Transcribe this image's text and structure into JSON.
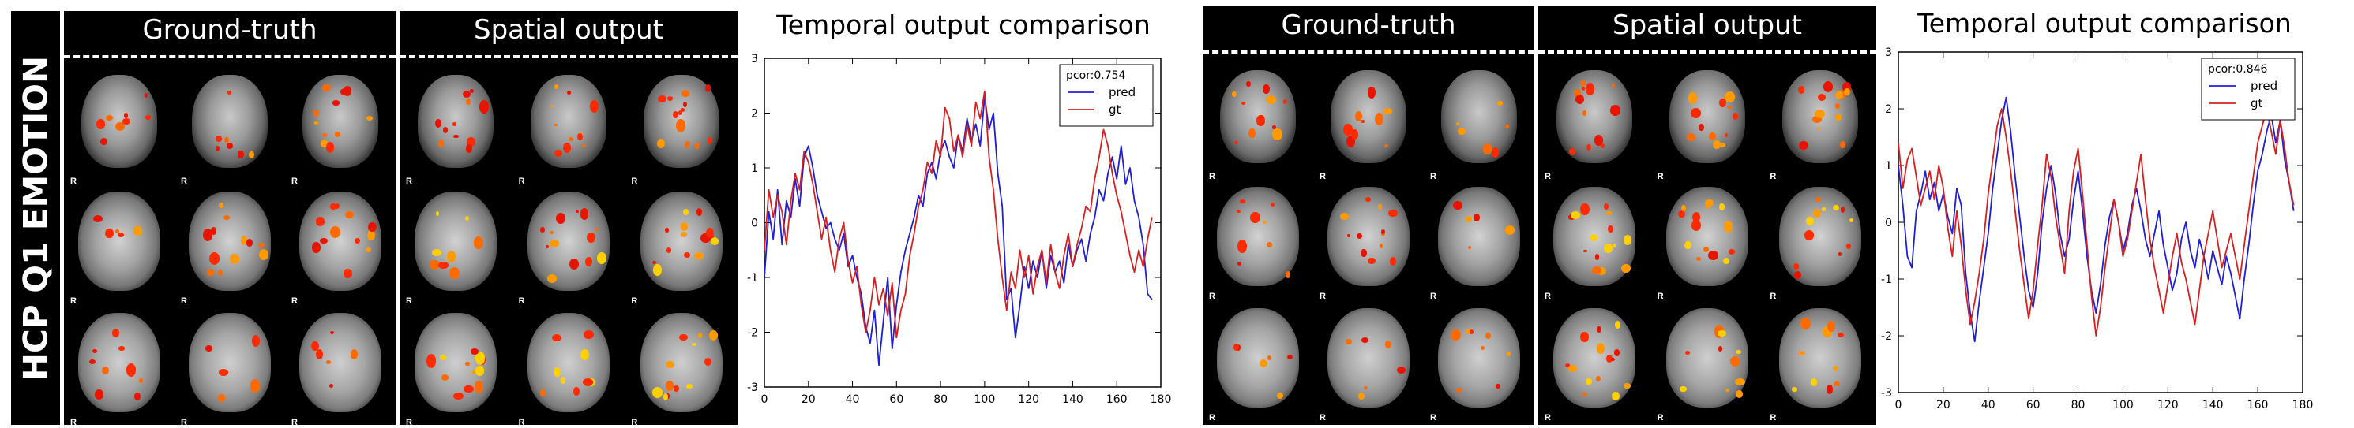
{
  "row_label": "HCP Q1 EMOTION",
  "panels": {
    "gt_title": "Ground-truth",
    "sp_title": "Spatial output"
  },
  "slice_marker": "R",
  "chart_data": [
    {
      "type": "line",
      "title": "Temporal output comparison",
      "xlabel": "",
      "ylabel": "",
      "xlim": [
        0,
        180
      ],
      "ylim": [
        -3,
        3
      ],
      "xticks": [
        0,
        20,
        40,
        60,
        80,
        100,
        120,
        140,
        160,
        180
      ],
      "yticks": [
        -3,
        -2,
        -1,
        0,
        1,
        2,
        3
      ],
      "grid": false,
      "legend": {
        "placement": "top-right",
        "title": "pcor:0.754"
      },
      "series": [
        {
          "name": "pred",
          "color": "#1f1fd6",
          "x": [
            0,
            2,
            4,
            6,
            8,
            10,
            12,
            14,
            16,
            18,
            20,
            22,
            24,
            26,
            28,
            30,
            32,
            34,
            36,
            38,
            40,
            42,
            44,
            46,
            48,
            50,
            52,
            54,
            56,
            58,
            60,
            62,
            64,
            66,
            68,
            70,
            72,
            74,
            76,
            78,
            80,
            82,
            84,
            86,
            88,
            90,
            92,
            94,
            96,
            98,
            100,
            102,
            104,
            106,
            108,
            110,
            112,
            114,
            116,
            118,
            120,
            122,
            124,
            126,
            128,
            130,
            132,
            134,
            136,
            138,
            140,
            142,
            144,
            146,
            148,
            150,
            152,
            154,
            156,
            158,
            160,
            162,
            164,
            166,
            168,
            170,
            172,
            174,
            176
          ],
          "y": [
            -1.0,
            0.2,
            -0.3,
            0.6,
            -0.4,
            0.4,
            0.1,
            0.8,
            0.3,
            1.2,
            1.4,
            1.0,
            0.5,
            0.2,
            -0.1,
            0.0,
            -0.3,
            -0.5,
            -0.2,
            -0.8,
            -0.6,
            -1.0,
            -1.3,
            -1.9,
            -2.2,
            -1.6,
            -2.6,
            -1.8,
            -1.0,
            -2.3,
            -1.5,
            -0.9,
            -0.5,
            -0.2,
            0.1,
            0.5,
            0.3,
            0.9,
            1.1,
            0.8,
            1.3,
            1.5,
            1.2,
            1.0,
            1.6,
            1.3,
            1.9,
            1.5,
            1.8,
            1.4,
            2.3,
            1.7,
            2.0,
            0.9,
            0.3,
            -1.4,
            -1.2,
            -2.1,
            -1.5,
            -0.8,
            -1.2,
            -0.7,
            -1.0,
            -0.5,
            -1.2,
            -0.6,
            -0.9,
            -0.7,
            -1.1,
            -0.4,
            -0.8,
            -0.5,
            -0.3,
            -0.7,
            -0.2,
            0.1,
            0.6,
            0.4,
            0.9,
            1.2,
            0.8,
            1.4,
            0.7,
            1.0,
            0.4,
            0.1,
            -0.4,
            -1.3,
            -1.4
          ]
        },
        {
          "name": "gt",
          "color": "#d62020",
          "x": [
            0,
            2,
            4,
            6,
            8,
            10,
            12,
            14,
            16,
            18,
            20,
            22,
            24,
            26,
            28,
            30,
            32,
            34,
            36,
            38,
            40,
            42,
            44,
            46,
            48,
            50,
            52,
            54,
            56,
            58,
            60,
            62,
            64,
            66,
            68,
            70,
            72,
            74,
            76,
            78,
            80,
            82,
            84,
            86,
            88,
            90,
            92,
            94,
            96,
            98,
            100,
            102,
            104,
            106,
            108,
            110,
            112,
            114,
            116,
            118,
            120,
            122,
            124,
            126,
            128,
            130,
            132,
            134,
            136,
            138,
            140,
            142,
            144,
            146,
            148,
            150,
            152,
            154,
            156,
            158,
            160,
            162,
            164,
            166,
            168,
            170,
            172,
            174,
            176
          ],
          "y": [
            -0.5,
            0.6,
            0.1,
            0.5,
            0.2,
            -0.4,
            0.4,
            0.9,
            0.6,
            1.3,
            1.1,
            0.7,
            0.2,
            -0.3,
            0.1,
            -0.5,
            -0.9,
            -0.3,
            0.0,
            -0.7,
            -1.1,
            -0.8,
            -1.5,
            -2.0,
            -1.6,
            -1.0,
            -1.5,
            -1.2,
            -1.7,
            -1.1,
            -2.1,
            -1.6,
            -1.3,
            -0.6,
            -0.2,
            0.3,
            0.6,
            1.1,
            0.9,
            1.5,
            1.2,
            2.1,
            1.9,
            1.3,
            1.6,
            1.2,
            1.8,
            1.4,
            2.2,
            1.9,
            2.4,
            1.2,
            0.6,
            -0.3,
            -1.0,
            -1.6,
            -0.9,
            -1.2,
            -0.5,
            -1.0,
            -0.6,
            -1.3,
            -0.8,
            -0.5,
            -1.1,
            -0.4,
            -0.9,
            -1.2,
            -0.6,
            -0.2,
            -0.8,
            -0.4,
            -0.1,
            0.3,
            0.2,
            0.8,
            1.2,
            1.7,
            1.4,
            0.9,
            0.5,
            0.2,
            -0.2,
            -0.6,
            -0.9,
            -0.5,
            -0.8,
            -0.3,
            0.1
          ]
        }
      ]
    },
    {
      "type": "line",
      "title": "Temporal output comparison",
      "xlabel": "",
      "ylabel": "",
      "xlim": [
        0,
        180
      ],
      "ylim": [
        -3,
        3
      ],
      "xticks": [
        0,
        20,
        40,
        60,
        80,
        100,
        120,
        140,
        160,
        180
      ],
      "yticks": [
        -3,
        -2,
        -1,
        0,
        1,
        2,
        3
      ],
      "grid": false,
      "legend": {
        "placement": "top-right",
        "title": "pcor:0.846"
      },
      "series": [
        {
          "name": "pred",
          "color": "#1f1fd6",
          "x": [
            0,
            2,
            4,
            6,
            8,
            10,
            12,
            14,
            16,
            18,
            20,
            22,
            24,
            26,
            28,
            30,
            32,
            34,
            36,
            38,
            40,
            42,
            44,
            46,
            48,
            50,
            52,
            54,
            56,
            58,
            60,
            62,
            64,
            66,
            68,
            70,
            72,
            74,
            76,
            78,
            80,
            82,
            84,
            86,
            88,
            90,
            92,
            94,
            96,
            98,
            100,
            102,
            104,
            106,
            108,
            110,
            112,
            114,
            116,
            118,
            120,
            122,
            124,
            126,
            128,
            130,
            132,
            134,
            136,
            138,
            140,
            142,
            144,
            146,
            148,
            150,
            152,
            154,
            156,
            158,
            160,
            162,
            164,
            166,
            168,
            170,
            172,
            174,
            176
          ],
          "y": [
            1.0,
            0.3,
            -0.6,
            -0.8,
            0.2,
            0.5,
            0.9,
            0.4,
            0.7,
            0.2,
            0.5,
            0.1,
            -0.2,
            0.6,
            0.3,
            -0.9,
            -1.6,
            -2.1,
            -1.4,
            -0.8,
            -0.2,
            0.6,
            1.2,
            1.8,
            2.2,
            1.6,
            0.8,
            0.1,
            -0.6,
            -1.2,
            -1.5,
            -0.9,
            0.0,
            0.6,
            1.0,
            0.5,
            -0.2,
            -0.6,
            -0.3,
            0.4,
            0.9,
            0.2,
            -0.6,
            -1.2,
            -1.6,
            -1.1,
            -0.4,
            0.1,
            0.4,
            0.0,
            -0.5,
            -0.2,
            0.3,
            0.6,
            0.2,
            -0.3,
            -0.6,
            -0.2,
            0.2,
            -0.4,
            -0.8,
            -1.2,
            -0.9,
            -0.3,
            0.0,
            -0.5,
            -0.8,
            -0.3,
            -0.6,
            -1.0,
            -0.5,
            -0.8,
            -1.1,
            -0.6,
            -0.9,
            -1.3,
            -1.7,
            -1.0,
            -0.4,
            0.3,
            0.9,
            1.2,
            1.6,
            1.9,
            1.4,
            1.8,
            1.1,
            0.7,
            0.2
          ]
        },
        {
          "name": "gt",
          "color": "#d62020",
          "x": [
            0,
            2,
            4,
            6,
            8,
            10,
            12,
            14,
            16,
            18,
            20,
            22,
            24,
            26,
            28,
            30,
            32,
            34,
            36,
            38,
            40,
            42,
            44,
            46,
            48,
            50,
            52,
            54,
            56,
            58,
            60,
            62,
            64,
            66,
            68,
            70,
            72,
            74,
            76,
            78,
            80,
            82,
            84,
            86,
            88,
            90,
            92,
            94,
            96,
            98,
            100,
            102,
            104,
            106,
            108,
            110,
            112,
            114,
            116,
            118,
            120,
            122,
            124,
            126,
            128,
            130,
            132,
            134,
            136,
            138,
            140,
            142,
            144,
            146,
            148,
            150,
            152,
            154,
            156,
            158,
            160,
            162,
            164,
            166,
            168,
            170,
            172,
            174,
            176
          ],
          "y": [
            1.4,
            0.6,
            1.1,
            1.3,
            0.8,
            0.3,
            0.6,
            0.9,
            0.4,
            1.0,
            0.6,
            -0.1,
            -0.6,
            0.2,
            -0.4,
            -1.2,
            -1.8,
            -1.4,
            -0.9,
            -0.3,
            0.5,
            1.1,
            1.7,
            2.0,
            1.5,
            0.9,
            0.2,
            -0.5,
            -1.1,
            -1.7,
            -1.2,
            -0.4,
            0.3,
            1.2,
            0.8,
            0.1,
            -0.4,
            -0.9,
            0.2,
            0.9,
            1.3,
            0.5,
            -0.4,
            -1.3,
            -2.0,
            -1.5,
            -0.8,
            -0.2,
            0.4,
            0.0,
            -0.6,
            -0.3,
            0.2,
            0.7,
            1.2,
            0.4,
            -0.3,
            -0.8,
            -1.2,
            -1.6,
            -1.1,
            -0.6,
            -0.2,
            -0.7,
            -1.0,
            -1.4,
            -1.8,
            -1.2,
            -0.6,
            -0.2,
            0.2,
            -0.3,
            -0.8,
            -0.5,
            -0.2,
            -0.6,
            -1.0,
            -0.4,
            0.2,
            0.8,
            1.4,
            1.7,
            2.0,
            1.6,
            1.2,
            1.8,
            1.3,
            0.7,
            0.3
          ]
        }
      ]
    }
  ]
}
